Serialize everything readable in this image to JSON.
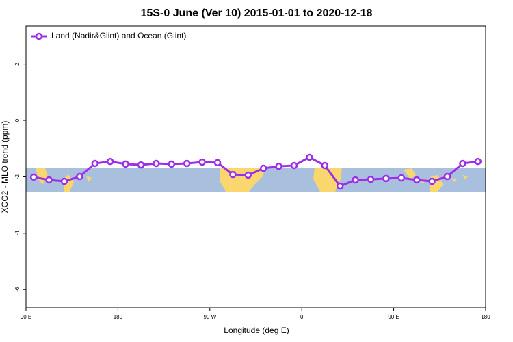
{
  "chart_data": {
    "type": "line",
    "title": "15S-0 June (Ver 10)   2015-01-01 to 2020-12-18",
    "x_label": "Longitude (deg E)",
    "y_label": "XCO2 - MLO trend (ppm)",
    "x": [
      97.5,
      112.5,
      127.5,
      142.5,
      157.5,
      172.5,
      187.5,
      202.5,
      217.5,
      232.5,
      247.5,
      262.5,
      277.5,
      292.5,
      307.5,
      322.5,
      337.5,
      352.5,
      367.5,
      382.5,
      397.5,
      412.5,
      427.5,
      442.5,
      457.5,
      472.5,
      487.5,
      502.5,
      517.5,
      532.5
    ],
    "series": [
      {
        "name": "Land (Nadir&Glint) and Ocean (Glint)",
        "color": "#9b2ee6",
        "values": [
          -2.01,
          -2.11,
          -2.16,
          -1.99,
          -1.53,
          -1.46,
          -1.55,
          -1.58,
          -1.53,
          -1.55,
          -1.53,
          -1.48,
          -1.5,
          -1.92,
          -1.94,
          -1.7,
          -1.63,
          -1.6,
          -1.31,
          -1.6,
          -2.33,
          -2.11,
          -2.09,
          -2.06,
          -2.04,
          -2.11,
          -2.16,
          -1.99,
          -1.53,
          -1.46
        ]
      }
    ],
    "xlim": [
      90,
      540
    ],
    "xticks": [
      {
        "value": 90,
        "label": "90 E"
      },
      180,
      {
        "value": 270,
        "label": "90 W"
      },
      {
        "value": 360,
        "label": "0"
      },
      {
        "value": 450,
        "label": "90 E"
      },
      {
        "value": 540,
        "label": "180"
      }
    ],
    "ylim": [
      -6.65,
      3.35
    ],
    "yticks": [
      -6,
      -4,
      -2,
      0,
      2
    ],
    "legend": "top-left"
  }
}
